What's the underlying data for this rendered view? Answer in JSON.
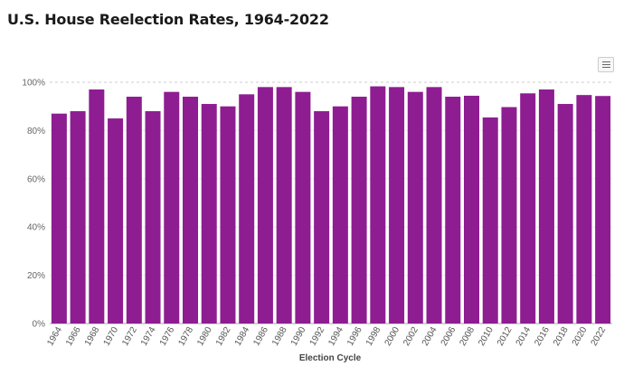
{
  "chart_data": {
    "type": "bar",
    "title": "U.S. House Reelection Rates, 1964-2022",
    "xlabel": "Election Cycle",
    "ylabel": "",
    "ylim": [
      0,
      100
    ],
    "yticks": [
      "0%",
      "20%",
      "40%",
      "60%",
      "80%",
      "100%"
    ],
    "grid": true,
    "bar_color": "#8e1d92",
    "categories": [
      "1964",
      "1966",
      "1968",
      "1970",
      "1972",
      "1974",
      "1976",
      "1978",
      "1980",
      "1982",
      "1984",
      "1986",
      "1988",
      "1990",
      "1992",
      "1994",
      "1996",
      "1998",
      "2000",
      "2002",
      "2004",
      "2006",
      "2008",
      "2010",
      "2012",
      "2014",
      "2016",
      "2018",
      "2020",
      "2022"
    ],
    "values": [
      87,
      88,
      97,
      85,
      94,
      88,
      96,
      94,
      91,
      90,
      95,
      98,
      98,
      96,
      88,
      90,
      94,
      98.3,
      98,
      96,
      98,
      94,
      94.4,
      85.4,
      89.7,
      95.4,
      97,
      91,
      94.7,
      94.3
    ]
  },
  "toolbar": {
    "menu_icon": "hamburger-menu-icon"
  }
}
